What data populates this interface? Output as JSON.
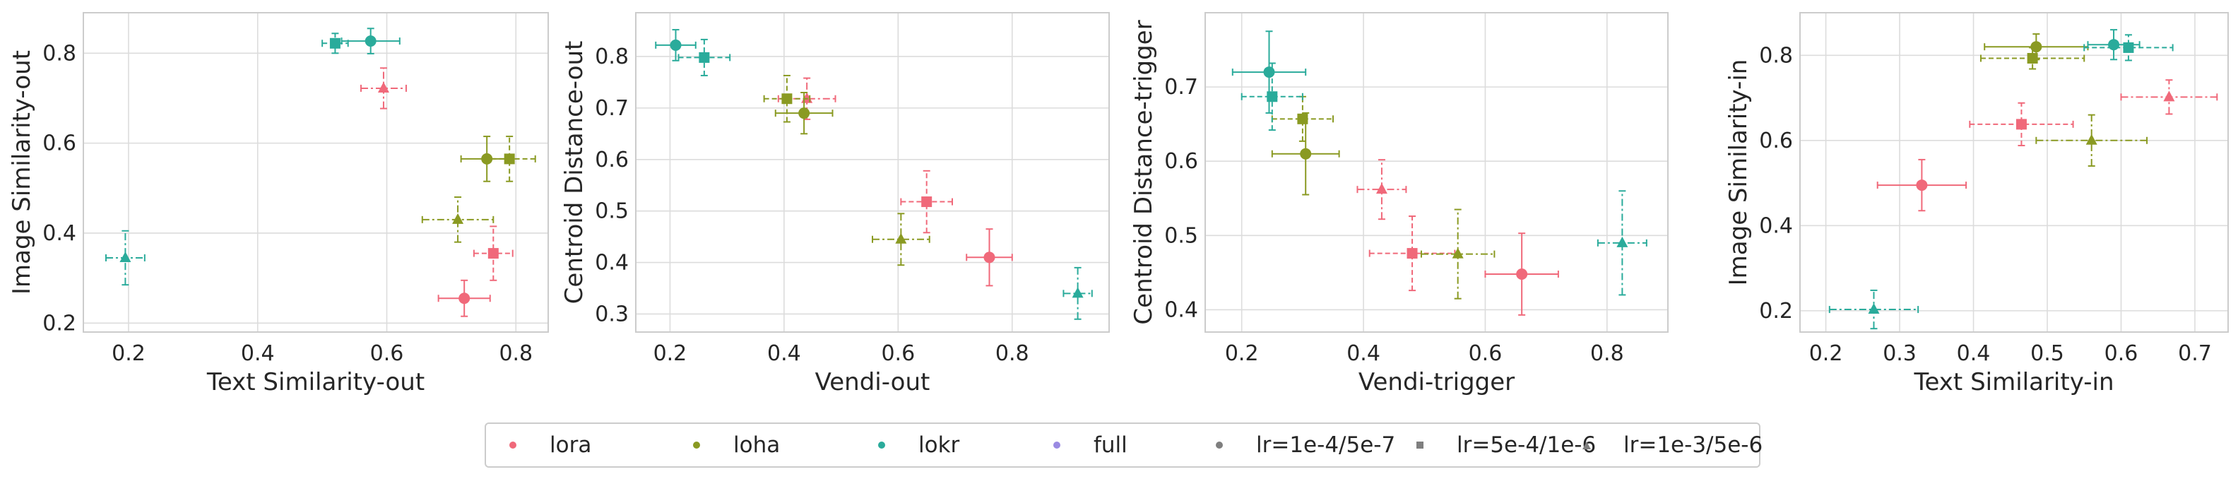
{
  "colors": {
    "lora": "#f0697a",
    "loha": "#8a9a22",
    "lokr": "#2aab9b",
    "full": "#9a8ae2",
    "neutral": "#7f7f7f"
  },
  "legend": [
    {
      "label": "lora",
      "marker": "dot",
      "color": "#f0697a"
    },
    {
      "label": "loha",
      "marker": "dot",
      "color": "#8a9a22"
    },
    {
      "label": "lokr",
      "marker": "dot",
      "color": "#2aab9b"
    },
    {
      "label": "full",
      "marker": "dot",
      "color": "#9a8ae2"
    },
    {
      "label": "lr=1e-4/5e-7",
      "marker": "dot",
      "color": "#7f7f7f"
    },
    {
      "label": "lr=5e-4/1e-6",
      "marker": "square",
      "color": "#7f7f7f"
    },
    {
      "label": "lr=1e-3/5e-6",
      "marker": "triangle",
      "color": "#7f7f7f"
    }
  ],
  "chart_data": [
    {
      "type": "scatter",
      "xlabel": "Text Similarity-out",
      "ylabel": "Image Similarity-out",
      "xlim": [
        0.13,
        0.85
      ],
      "ylim": [
        0.18,
        0.89
      ],
      "xticks": [
        0.2,
        0.4,
        0.6,
        0.8
      ],
      "yticks": [
        0.2,
        0.4,
        0.6,
        0.8
      ],
      "points": [
        {
          "algo": "lora",
          "lr": "1e-4/5e-7",
          "x": 0.72,
          "y": 0.255,
          "xerr": 0.04,
          "yerr": 0.04
        },
        {
          "algo": "lora",
          "lr": "5e-4/1e-6",
          "x": 0.765,
          "y": 0.355,
          "xerr": 0.03,
          "yerr": 0.06
        },
        {
          "algo": "lora",
          "lr": "1e-3/5e-6",
          "x": 0.595,
          "y": 0.722,
          "xerr": 0.035,
          "yerr": 0.045
        },
        {
          "algo": "loha",
          "lr": "1e-4/5e-7",
          "x": 0.755,
          "y": 0.565,
          "xerr": 0.04,
          "yerr": 0.05
        },
        {
          "algo": "loha",
          "lr": "5e-4/1e-6",
          "x": 0.79,
          "y": 0.565,
          "xerr": 0.04,
          "yerr": 0.05
        },
        {
          "algo": "loha",
          "lr": "1e-3/5e-6",
          "x": 0.71,
          "y": 0.43,
          "xerr": 0.055,
          "yerr": 0.05
        },
        {
          "algo": "lokr",
          "lr": "1e-4/5e-7",
          "x": 0.575,
          "y": 0.827,
          "xerr": 0.045,
          "yerr": 0.028
        },
        {
          "algo": "lokr",
          "lr": "5e-4/1e-6",
          "x": 0.52,
          "y": 0.822,
          "xerr": 0.02,
          "yerr": 0.022
        },
        {
          "algo": "lokr",
          "lr": "1e-3/5e-6",
          "x": 0.195,
          "y": 0.345,
          "xerr": 0.03,
          "yerr": 0.06
        }
      ]
    },
    {
      "type": "scatter",
      "xlabel": "Vendi-out",
      "ylabel": "Centroid Distance-out",
      "xlim": [
        0.14,
        0.97
      ],
      "ylim": [
        0.265,
        0.885
      ],
      "xticks": [
        0.2,
        0.4,
        0.6,
        0.8
      ],
      "yticks": [
        0.3,
        0.4,
        0.5,
        0.6,
        0.7,
        0.8
      ],
      "points": [
        {
          "algo": "lora",
          "lr": "1e-4/5e-7",
          "x": 0.76,
          "y": 0.41,
          "xerr": 0.04,
          "yerr": 0.055
        },
        {
          "algo": "lora",
          "lr": "5e-4/1e-6",
          "x": 0.65,
          "y": 0.518,
          "xerr": 0.045,
          "yerr": 0.06
        },
        {
          "algo": "lora",
          "lr": "1e-3/5e-6",
          "x": 0.44,
          "y": 0.718,
          "xerr": 0.05,
          "yerr": 0.04
        },
        {
          "algo": "loha",
          "lr": "1e-4/5e-7",
          "x": 0.435,
          "y": 0.69,
          "xerr": 0.05,
          "yerr": 0.04
        },
        {
          "algo": "loha",
          "lr": "5e-4/1e-6",
          "x": 0.405,
          "y": 0.718,
          "xerr": 0.04,
          "yerr": 0.045
        },
        {
          "algo": "loha",
          "lr": "1e-3/5e-6",
          "x": 0.605,
          "y": 0.445,
          "xerr": 0.05,
          "yerr": 0.05
        },
        {
          "algo": "lokr",
          "lr": "1e-4/5e-7",
          "x": 0.21,
          "y": 0.822,
          "xerr": 0.035,
          "yerr": 0.03
        },
        {
          "algo": "lokr",
          "lr": "5e-4/1e-6",
          "x": 0.26,
          "y": 0.798,
          "xerr": 0.045,
          "yerr": 0.035
        },
        {
          "algo": "lokr",
          "lr": "1e-3/5e-6",
          "x": 0.915,
          "y": 0.34,
          "xerr": 0.025,
          "yerr": 0.05
        }
      ]
    },
    {
      "type": "scatter",
      "xlabel": "Vendi-trigger",
      "ylabel": "Centroid Distance-trigger",
      "xlim": [
        0.14,
        0.9
      ],
      "ylim": [
        0.37,
        0.8
      ],
      "xticks": [
        0.2,
        0.4,
        0.6,
        0.8
      ],
      "yticks": [
        0.4,
        0.5,
        0.6,
        0.7
      ],
      "points": [
        {
          "algo": "lora",
          "lr": "1e-4/5e-7",
          "x": 0.66,
          "y": 0.448,
          "xerr": 0.06,
          "yerr": 0.055
        },
        {
          "algo": "lora",
          "lr": "5e-4/1e-6",
          "x": 0.48,
          "y": 0.476,
          "xerr": 0.07,
          "yerr": 0.05
        },
        {
          "algo": "lora",
          "lr": "1e-3/5e-6",
          "x": 0.43,
          "y": 0.562,
          "xerr": 0.04,
          "yerr": 0.04
        },
        {
          "algo": "loha",
          "lr": "1e-4/5e-7",
          "x": 0.305,
          "y": 0.61,
          "xerr": 0.055,
          "yerr": 0.055
        },
        {
          "algo": "loha",
          "lr": "5e-4/1e-6",
          "x": 0.3,
          "y": 0.657,
          "xerr": 0.05,
          "yerr": 0.03
        },
        {
          "algo": "loha",
          "lr": "1e-3/5e-6",
          "x": 0.555,
          "y": 0.475,
          "xerr": 0.06,
          "yerr": 0.06
        },
        {
          "algo": "lokr",
          "lr": "1e-4/5e-7",
          "x": 0.245,
          "y": 0.72,
          "xerr": 0.06,
          "yerr": 0.055
        },
        {
          "algo": "lokr",
          "lr": "5e-4/1e-6",
          "x": 0.25,
          "y": 0.687,
          "xerr": 0.05,
          "yerr": 0.045
        },
        {
          "algo": "lokr",
          "lr": "1e-3/5e-6",
          "x": 0.825,
          "y": 0.49,
          "xerr": 0.04,
          "yerr": 0.07
        }
      ]
    },
    {
      "type": "scatter",
      "xlabel": "Text Similarity-in",
      "ylabel": "Image Similarity-in",
      "xlim": [
        0.165,
        0.745
      ],
      "ylim": [
        0.15,
        0.9
      ],
      "xticks": [
        0.2,
        0.3,
        0.4,
        0.5,
        0.6,
        0.7
      ],
      "yticks": [
        0.2,
        0.4,
        0.6,
        0.8
      ],
      "points": [
        {
          "algo": "lora",
          "lr": "1e-4/5e-7",
          "x": 0.33,
          "y": 0.495,
          "xerr": 0.06,
          "yerr": 0.06
        },
        {
          "algo": "lora",
          "lr": "5e-4/1e-6",
          "x": 0.465,
          "y": 0.638,
          "xerr": 0.07,
          "yerr": 0.05
        },
        {
          "algo": "lora",
          "lr": "1e-3/5e-6",
          "x": 0.665,
          "y": 0.702,
          "xerr": 0.065,
          "yerr": 0.04
        },
        {
          "algo": "loha",
          "lr": "1e-4/5e-7",
          "x": 0.485,
          "y": 0.82,
          "xerr": 0.07,
          "yerr": 0.03
        },
        {
          "algo": "loha",
          "lr": "5e-4/1e-6",
          "x": 0.48,
          "y": 0.793,
          "xerr": 0.07,
          "yerr": 0.025
        },
        {
          "algo": "loha",
          "lr": "1e-3/5e-6",
          "x": 0.56,
          "y": 0.6,
          "xerr": 0.075,
          "yerr": 0.06
        },
        {
          "algo": "lokr",
          "lr": "1e-4/5e-7",
          "x": 0.59,
          "y": 0.825,
          "xerr": 0.035,
          "yerr": 0.035
        },
        {
          "algo": "lokr",
          "lr": "5e-4/1e-6",
          "x": 0.61,
          "y": 0.818,
          "xerr": 0.06,
          "yerr": 0.03
        },
        {
          "algo": "lokr",
          "lr": "1e-3/5e-6",
          "x": 0.265,
          "y": 0.203,
          "xerr": 0.06,
          "yerr": 0.045
        }
      ]
    }
  ]
}
